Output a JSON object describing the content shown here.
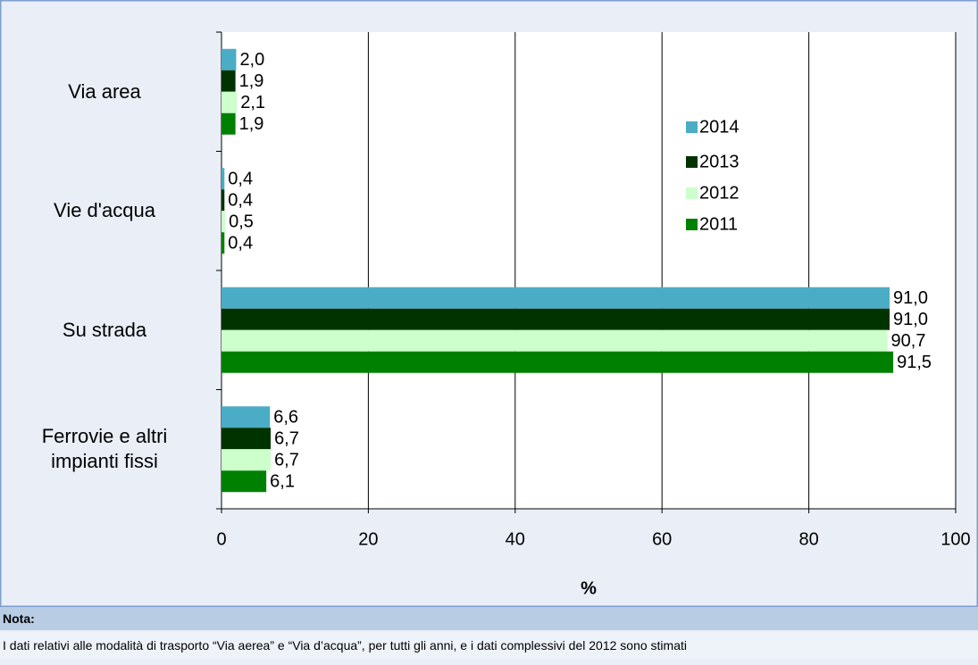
{
  "chart_data": {
    "type": "hbar",
    "categories": [
      "Via area",
      "Vie d'acqua",
      "Su strada",
      "Ferrovie e altri impianti fissi"
    ],
    "series": [
      {
        "name": "2014",
        "color": "#4bacc6",
        "values": [
          2.0,
          0.4,
          91.0,
          6.6
        ],
        "value_labels": [
          "2,0",
          "0,4",
          "91,0",
          "6,6"
        ]
      },
      {
        "name": "2013",
        "color": "#003300",
        "values": [
          1.9,
          0.4,
          91.0,
          6.7
        ],
        "value_labels": [
          "1,9",
          "0,4",
          "91,0",
          "6,7"
        ]
      },
      {
        "name": "2012",
        "color": "#ccffcc",
        "values": [
          2.1,
          0.5,
          90.7,
          6.7
        ],
        "value_labels": [
          "2,1",
          "0,5",
          "90,7",
          "6,7"
        ]
      },
      {
        "name": "2011",
        "color": "#008000",
        "values": [
          1.9,
          0.4,
          91.5,
          6.1
        ],
        "value_labels": [
          "1,9",
          "0,4",
          "91,5",
          "6,1"
        ]
      }
    ],
    "xlabel": "%",
    "xlim": [
      0,
      100
    ],
    "xticks": [
      0,
      20,
      40,
      60,
      80,
      100
    ],
    "grid": true,
    "legend": "right",
    "note_title": "Nota:",
    "note": "I dati relativi alle modalità di trasporto “Via aerea” e “Via d’acqua”, per tutti gli anni, e i dati complessivi del 2012 sono stimati"
  }
}
